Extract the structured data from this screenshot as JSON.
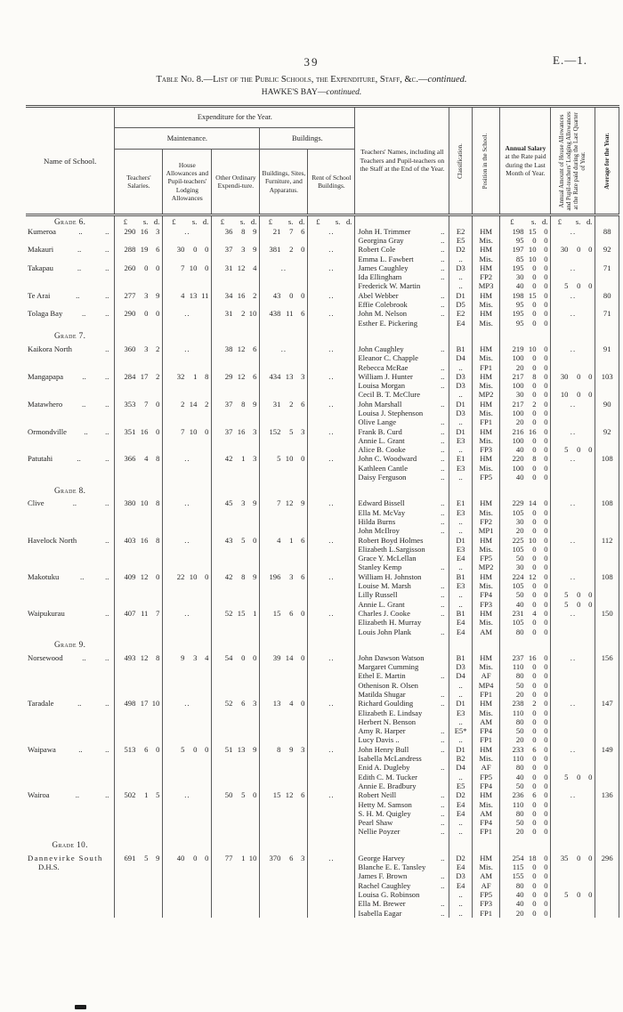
{
  "page": {
    "number": "39",
    "doc_ref": "E.—1."
  },
  "title": {
    "main": "Table No. 8.—List of the Public Schools, the Expenditure, Staff, &c.—",
    "main_continued": "continued.",
    "region": "HAWKE'S BAY—",
    "region_continued": "continued."
  },
  "table": {
    "units": "£ s. d.",
    "headers": {
      "name": "Name of School.",
      "expenditure_group": "Expenditure for the Year.",
      "maintenance_group": "Maintenance.",
      "buildings_group": "Buildings.",
      "teachers_salaries": "Teachers' Salaries.",
      "house_allowances": "House Allowances and Pupil-teachers' Lodging Allowances",
      "other_ordinary": "Other Ordinary Expendi-ture.",
      "buildings_sites": "Buildings, Sites, Furniture, and Apparatus.",
      "rent": "Rent of School Buildings.",
      "teachers_names": "Teachers' Names, including all Teachers and Pupil-teachers on the Staff at the End of the Year.",
      "classification": "Classification.",
      "position": "Position in the School.",
      "annual_salary_title": "Annual Salary",
      "annual_salary_rest": "at the Rate paid during the Last Month of Year.",
      "annual_amount": "Annual Amount of House Allowances and Pupil-teachers' Lodging Allowances at the Rate paid during the Last Quarter of Year.",
      "average": "Average for the Year."
    },
    "rows": [
      {
        "type": "units",
        "grade": "Grade 6."
      },
      {
        "type": "data",
        "school": "Kumeroa",
        "school_dots": 2,
        "salaries": "290 16 3",
        "house": "..",
        "other": "36 8 9",
        "buildings": "21 7 6",
        "rent": "..",
        "teacher": "John H. Trimmer",
        "teacher_dots": "..",
        "classification": "E2",
        "position": "HM",
        "salary": "198 15 0",
        "allowance": "..",
        "average": "88"
      },
      {
        "type": "data",
        "teacher": "Georgina Gray",
        "teacher_dots": "..",
        "classification": "E5",
        "position": "Mis.",
        "salary": "95 0 0"
      },
      {
        "type": "data",
        "school": "Makauri",
        "school_dots": 2,
        "salaries": "288 19 6",
        "house": "30 0 0",
        "other": "37 3 9",
        "buildings": "381 2 0",
        "rent": "..",
        "teacher": "Robert Cole",
        "teacher_dots": "..",
        "classification": "D2",
        "position": "HM",
        "salary": "197 10 0",
        "allowance": "30 0 0",
        "average": "92"
      },
      {
        "type": "data",
        "teacher": "Emma L. Fawbert",
        "teacher_dots": "..",
        "classification": "..",
        "position": "Mis.",
        "salary": "85 10 0"
      },
      {
        "type": "data",
        "school": "Takapau",
        "school_dots": 2,
        "salaries": "260 0 0",
        "house": "7 10 0",
        "other": "31 12 4",
        "buildings": "..",
        "rent": "..",
        "teacher": "James Caughley",
        "teacher_dots": "..",
        "classification": "D3",
        "position": "HM",
        "salary": "195 0 0",
        "allowance": "..",
        "average": "71"
      },
      {
        "type": "data",
        "teacher": "Ida Ellingham",
        "teacher_dots": "..",
        "classification": "..",
        "position": "FP2",
        "salary": "30 0 0"
      },
      {
        "type": "data",
        "teacher": "Frederick W. Martin",
        "classification": "..",
        "position": "MP3",
        "salary": "40 0 0",
        "allowance": "5 0 0"
      },
      {
        "type": "data",
        "school": "Te Arai",
        "school_dots": 2,
        "salaries": "277 3 9",
        "house": "4 13 11",
        "other": "34 16 2",
        "buildings": "43 0 0",
        "rent": "..",
        "teacher": "Abel Webber",
        "teacher_dots": "..",
        "classification": "D1",
        "position": "HM",
        "salary": "198 15 0",
        "allowance": "..",
        "average": "80"
      },
      {
        "type": "data",
        "teacher": "Effie Colebrook",
        "teacher_dots": "..",
        "classification": "D5",
        "position": "Mis.",
        "salary": "95 0 0"
      },
      {
        "type": "data",
        "school": "Tolaga Bay",
        "school_dots": 2,
        "salaries": "290 0 0",
        "house": "..",
        "other": "31 2 10",
        "buildings": "438 11 6",
        "rent": "..",
        "teacher": "John M. Nelson",
        "teacher_dots": "..",
        "classification": "E2",
        "position": "HM",
        "salary": "195 0 0",
        "allowance": "..",
        "average": "71"
      },
      {
        "type": "data",
        "teacher": "Esther E. Pickering",
        "classification": "E4",
        "position": "Mis.",
        "salary": "95 0 0"
      },
      {
        "type": "grade",
        "grade": "Grade 7."
      },
      {
        "type": "data",
        "school": "Kaikora North",
        "school_dots": 1,
        "salaries": "360 3 2",
        "house": "..",
        "other": "38 12 6",
        "buildings": "..",
        "rent": "..",
        "teacher": "John Caughley",
        "teacher_dots": "..",
        "classification": "B1",
        "position": "HM",
        "salary": "219 10 0",
        "allowance": "..",
        "average": "91"
      },
      {
        "type": "data",
        "teacher": "Eleanor C. Chapple",
        "classification": "D4",
        "position": "Mis.",
        "salary": "100 0 0"
      },
      {
        "type": "data",
        "teacher": "Rebecca McRae",
        "teacher_dots": "..",
        "classification": "..",
        "position": "FP1",
        "salary": "20 0 0"
      },
      {
        "type": "data",
        "school": "Mangapapa",
        "school_dots": 2,
        "salaries": "284 17 2",
        "house": "32 1 8",
        "other": "29 12 6",
        "buildings": "434 13 3",
        "rent": "..",
        "teacher": "William J. Hunter",
        "teacher_dots": "..",
        "classification": "D3",
        "position": "HM",
        "salary": "217 8 0",
        "allowance": "30 0 0",
        "average": "103"
      },
      {
        "type": "data",
        "teacher": "Louisa Morgan",
        "teacher_dots": "..",
        "classification": "D3",
        "position": "Mis.",
        "salary": "100 0 0"
      },
      {
        "type": "data",
        "teacher": "Cecil B. T. McClure",
        "classification": "..",
        "position": "MP2",
        "salary": "30 0 0",
        "allowance": "10 0 0"
      },
      {
        "type": "data",
        "school": "Matawhero",
        "school_dots": 2,
        "salaries": "353 7 0",
        "house": "2 14 2",
        "other": "37 8 9",
        "buildings": "31 2 6",
        "rent": "..",
        "teacher": "John Marshall",
        "teacher_dots": "..",
        "classification": "D1",
        "position": "HM",
        "salary": "217 2 0",
        "allowance": "..",
        "average": "90"
      },
      {
        "type": "data",
        "teacher": "Louisa J. Stephenson",
        "classification": "D3",
        "position": "Mis.",
        "salary": "100 0 0"
      },
      {
        "type": "data",
        "teacher": "Olive Lange",
        "teacher_dots": "..",
        "classification": "..",
        "position": "FP1",
        "salary": "20 0 0"
      },
      {
        "type": "data",
        "school": "Ormondville",
        "school_dots": 2,
        "salaries": "351 16 0",
        "house": "7 10 0",
        "other": "37 16 3",
        "buildings": "152 5 3",
        "rent": "..",
        "teacher": "Frank B. Curd",
        "teacher_dots": "..",
        "classification": "D1",
        "position": "HM",
        "salary": "216 16 0",
        "allowance": "..",
        "average": "92"
      },
      {
        "type": "data",
        "teacher": "Annie L. Grant",
        "teacher_dots": "..",
        "classification": "E3",
        "position": "Mis.",
        "salary": "100 0 0"
      },
      {
        "type": "data",
        "teacher": "Alice B. Cooke",
        "teacher_dots": "..",
        "classification": "..",
        "position": "FP3",
        "salary": "40 0 0",
        "allowance": "5 0 0"
      },
      {
        "type": "data",
        "school": "Patutahi",
        "school_dots": 2,
        "salaries": "366 4 8",
        "house": "..",
        "other": "42 1 3",
        "buildings": "5 10 0",
        "rent": "..",
        "teacher": "John C. Woodward",
        "teacher_dots": "..",
        "classification": "E1",
        "position": "HM",
        "salary": "220 8 0",
        "allowance": "..",
        "average": "108"
      },
      {
        "type": "data",
        "teacher": "Kathleen Cantle",
        "teacher_dots": "..",
        "classification": "E3",
        "position": "Mis.",
        "salary": "100 0 0"
      },
      {
        "type": "data",
        "teacher": "Daisy Ferguson",
        "teacher_dots": "..",
        "classification": "..",
        "position": "FP5",
        "salary": "40 0 0"
      },
      {
        "type": "grade",
        "grade": "Grade 8."
      },
      {
        "type": "data",
        "school": "Clive",
        "school_dots": 2,
        "salaries": "380 10 8",
        "house": "..",
        "other": "45 3 9",
        "buildings": "7 12 9",
        "rent": "..",
        "teacher": "Edward Bissell",
        "teacher_dots": "..",
        "classification": "E1",
        "position": "HM",
        "salary": "229 14 0",
        "allowance": "..",
        "average": "108"
      },
      {
        "type": "data",
        "teacher": "Ella M. McVay",
        "teacher_dots": "..",
        "classification": "E3",
        "position": "Mis.",
        "salary": "105 0 0"
      },
      {
        "type": "data",
        "teacher": "Hilda Burns",
        "teacher_dots": "..",
        "classification": "..",
        "position": "FP2",
        "salary": "30 0 0"
      },
      {
        "type": "data",
        "teacher": "John McIlroy",
        "teacher_dots": "..",
        "classification": "..",
        "position": "MP1",
        "salary": "20 0 0"
      },
      {
        "type": "data",
        "school": "Havelock North",
        "school_dots": 1,
        "salaries": "403 16 8",
        "house": "..",
        "other": "43 5 0",
        "buildings": "4 1 6",
        "rent": "..",
        "teacher": "Robert Boyd Holmes",
        "classification": "D1",
        "position": "HM",
        "salary": "225 10 0",
        "allowance": "..",
        "average": "112"
      },
      {
        "type": "data",
        "teacher": "Elizabeth L.Sargisson",
        "classification": "E3",
        "position": "Mis.",
        "salary": "105 0 0"
      },
      {
        "type": "data",
        "teacher": "Grace Y. McLellan",
        "classification": "E4",
        "position": "FP5",
        "salary": "50 0 0"
      },
      {
        "type": "data",
        "teacher": "Stanley Kemp",
        "teacher_dots": "..",
        "classification": "..",
        "position": "MP2",
        "salary": "30 0 0"
      },
      {
        "type": "data",
        "school": "Makotuku",
        "school_dots": 2,
        "salaries": "409 12 0",
        "house": "22 10 0",
        "other": "42 8 9",
        "buildings": "196 3 6",
        "rent": "..",
        "teacher": "William H. Johnston",
        "classification": "B1",
        "position": "HM",
        "salary": "224 12 0",
        "allowance": "..",
        "average": "108"
      },
      {
        "type": "data",
        "teacher": "Louise M. Marsh",
        "teacher_dots": "..",
        "classification": "E3",
        "position": "Mis.",
        "salary": "105 0 0"
      },
      {
        "type": "data",
        "teacher": "Lilly Russell",
        "teacher_dots": "..",
        "classification": "..",
        "position": "FP4",
        "salary": "50 0 0",
        "allowance": "5 0 0"
      },
      {
        "type": "data",
        "teacher": "Annie L. Grant",
        "teacher_dots": "..",
        "classification": "..",
        "position": "FP3",
        "salary": "40 0 0",
        "allowance": "5 0 0"
      },
      {
        "type": "data",
        "school": "Waipukurau",
        "school_dots": 1,
        "salaries": "407 11 7",
        "house": "..",
        "other": "52 15 1",
        "buildings": "15 6 0",
        "rent": "..",
        "teacher": "Charles J. Cooke",
        "teacher_dots": "..",
        "classification": "B1",
        "position": "HM",
        "salary": "231 4 0",
        "allowance": "..",
        "average": "150"
      },
      {
        "type": "data",
        "teacher": "Elizabeth H. Murray",
        "classification": "E4",
        "position": "Mis.",
        "salary": "105 0 0"
      },
      {
        "type": "data",
        "teacher": "Louis John Plank",
        "teacher_dots": "..",
        "classification": "E4",
        "position": "AM",
        "salary": "80 0 0"
      },
      {
        "type": "grade",
        "grade": "Grade 9."
      },
      {
        "type": "data",
        "school": "Norsewood",
        "school_dots": 2,
        "salaries": "493 12 8",
        "house": "9 3 4",
        "other": "54 0 0",
        "buildings": "39 14 0",
        "rent": "..",
        "teacher": "John Dawson Watson",
        "classification": "B1",
        "position": "HM",
        "salary": "237 16 0",
        "allowance": "..",
        "average": "156"
      },
      {
        "type": "data",
        "teacher": "Margaret Cumming",
        "classification": "D3",
        "position": "Mis.",
        "salary": "110 0 0"
      },
      {
        "type": "data",
        "teacher": "Ethel E. Martin",
        "teacher_dots": "..",
        "classification": "D4",
        "position": "AF",
        "salary": "80 0 0"
      },
      {
        "type": "data",
        "teacher": "Othenison R. Olsen",
        "classification": "..",
        "position": "MP4",
        "salary": "50 0 0"
      },
      {
        "type": "data",
        "teacher": "Matilda Shugar",
        "teacher_dots": "..",
        "classification": "..",
        "position": "FP1",
        "salary": "20 0 0"
      },
      {
        "type": "data",
        "school": "Taradale",
        "school_dots": 2,
        "salaries": "498 17 10",
        "house": "..",
        "other": "52 6 3",
        "buildings": "13 4 0",
        "rent": "..",
        "teacher": "Richard Goulding",
        "teacher_dots": "..",
        "classification": "D1",
        "position": "HM",
        "salary": "238 2 0",
        "allowance": "..",
        "average": "147"
      },
      {
        "type": "data",
        "teacher": "Elizabeth E. Lindsay",
        "classification": "E3",
        "position": "Mis.",
        "salary": "110 0 0"
      },
      {
        "type": "data",
        "teacher": "Herbert N. Benson",
        "classification": "..",
        "position": "AM",
        "salary": "80 0 0"
      },
      {
        "type": "data",
        "teacher": "Amy R. Harper",
        "teacher_dots": "..",
        "classification": "E5*",
        "position": "FP4",
        "salary": "50 0 0"
      },
      {
        "type": "data",
        "teacher": "Lucy Davis ..",
        "teacher_dots": "..",
        "classification": "..",
        "position": "FP1",
        "salary": "20 0 0"
      },
      {
        "type": "data",
        "school": "Waipawa",
        "school_dots": 2,
        "salaries": "513 6 0",
        "house": "5 0 0",
        "other": "51 13 9",
        "buildings": "8 9 3",
        "rent": "..",
        "teacher": "John Henry Bull",
        "teacher_dots": "..",
        "classification": "D1",
        "position": "HM",
        "salary": "233 6 0",
        "allowance": "..",
        "average": "149"
      },
      {
        "type": "data",
        "teacher": "Isabella McLandress",
        "classification": "B2",
        "position": "Mis.",
        "salary": "110 0 0"
      },
      {
        "type": "data",
        "teacher": "Enid A. Dugleby",
        "teacher_dots": "..",
        "classification": "D4",
        "position": "AF",
        "salary": "80 0 0"
      },
      {
        "type": "data",
        "teacher": "Edith C. M. Tucker",
        "classification": "..",
        "position": "FP5",
        "salary": "40 0 0",
        "allowance": "5 0 0"
      },
      {
        "type": "data",
        "teacher": "Annie E. Bradbury",
        "classification": "E5",
        "position": "FP4",
        "salary": "50 0 0"
      },
      {
        "type": "data",
        "school": "Wairoa",
        "school_dots": 2,
        "salaries": "502 1 5",
        "house": "..",
        "other": "50 5 0",
        "buildings": "15 12 6",
        "rent": "..",
        "teacher": "Robert Neill",
        "teacher_dots": "..",
        "classification": "D2",
        "position": "HM",
        "salary": "236 6 0",
        "allowance": "..",
        "average": "136"
      },
      {
        "type": "data",
        "teacher": "Hetty M. Samson",
        "teacher_dots": "..",
        "classification": "E4",
        "position": "Mis.",
        "salary": "110 0 0"
      },
      {
        "type": "data",
        "teacher": "S. H. M. Quigley",
        "teacher_dots": "..",
        "classification": "E4",
        "position": "AM",
        "salary": "80 0 0"
      },
      {
        "type": "data",
        "teacher": "Pearl Shaw",
        "teacher_dots": "..",
        "classification": "..",
        "position": "FP4",
        "salary": "50 0 0"
      },
      {
        "type": "data",
        "teacher": "Nellie Poyzer",
        "teacher_dots": "..",
        "classification": "..",
        "position": "FP1",
        "salary": "20 0 0"
      },
      {
        "type": "grade",
        "grade": "Grade 10."
      },
      {
        "type": "data",
        "school": "Dannevirke South",
        "school_spaced": true,
        "salaries": "691 5 9",
        "house": "40 0 0",
        "other": "77 1 10",
        "buildings": "370 6 3",
        "rent": "..",
        "teacher": "George Harvey",
        "teacher_dots": "..",
        "classification": "D2",
        "position": "HM",
        "salary": "254 18 0",
        "allowance": "35 0 0",
        "average": "296"
      },
      {
        "type": "data",
        "school": "D.H.S.",
        "school_indent": true,
        "teacher": "Blanche E. E. Tansley",
        "classification": "E4",
        "position": "Mis.",
        "salary": "115 0 0"
      },
      {
        "type": "data",
        "teacher": "James F. Brown",
        "teacher_dots": "..",
        "classification": "D3",
        "position": "AM",
        "salary": "155 0 0"
      },
      {
        "type": "data",
        "teacher": "Rachel Caughley",
        "teacher_dots": "..",
        "classification": "E4",
        "position": "AF",
        "salary": "80 0 0"
      },
      {
        "type": "data",
        "teacher": "Louisa G. Robinson",
        "classification": "..",
        "position": "FP5",
        "salary": "40 0 0",
        "allowance": "5 0 0"
      },
      {
        "type": "data",
        "teacher": "Ella M. Brewer",
        "teacher_dots": "..",
        "classification": "..",
        "position": "FP3",
        "salary": "40 0 0"
      },
      {
        "type": "data",
        "teacher": "Isabella Eagar",
        "teacher_dots": "..",
        "classification": "..",
        "position": "FP1",
        "salary": "20 0 0"
      }
    ]
  }
}
